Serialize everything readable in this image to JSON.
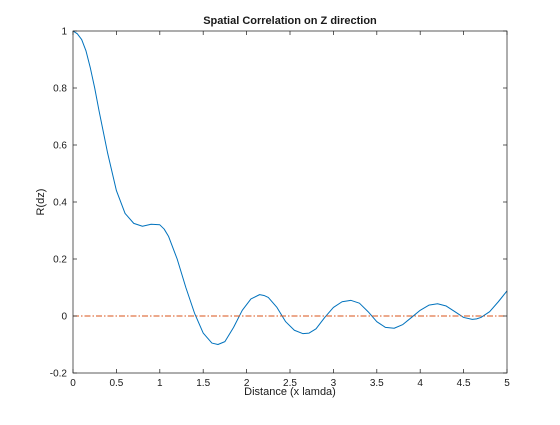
{
  "chart_data": {
    "type": "line",
    "title": "Spatial Correlation on Z direction",
    "xlabel": "Distance (x lamda)",
    "ylabel": "R(dz)",
    "xlim": [
      0,
      5
    ],
    "ylim": [
      -0.2,
      1
    ],
    "grid": false,
    "x_ticks": [
      0,
      0.5,
      1,
      1.5,
      2,
      2.5,
      3,
      3.5,
      4,
      4.5,
      5
    ],
    "x_tick_labels": [
      "0",
      "0.5",
      "1",
      "1.5",
      "2",
      "2.5",
      "3",
      "3.5",
      "4",
      "4.5",
      "5"
    ],
    "y_ticks": [
      -0.2,
      0,
      0.2,
      0.4,
      0.6,
      0.8,
      1
    ],
    "y_tick_labels": [
      "-0.2",
      "0",
      "0.2",
      "0.4",
      "0.6",
      "0.8",
      "1"
    ],
    "series": [
      {
        "style": "solid",
        "color": "#0072bd",
        "x": [
          0,
          0.05,
          0.1,
          0.15,
          0.2,
          0.25,
          0.3,
          0.4,
          0.5,
          0.6,
          0.7,
          0.8,
          0.9,
          1.0,
          1.05,
          1.1,
          1.2,
          1.3,
          1.4,
          1.5,
          1.6,
          1.67,
          1.75,
          1.85,
          1.95,
          2.05,
          2.15,
          2.2,
          2.25,
          2.35,
          2.45,
          2.55,
          2.65,
          2.72,
          2.8,
          2.9,
          3.0,
          3.1,
          3.2,
          3.3,
          3.4,
          3.5,
          3.6,
          3.7,
          3.8,
          3.9,
          4.0,
          4.1,
          4.2,
          4.3,
          4.4,
          4.5,
          4.6,
          4.65,
          4.7,
          4.8,
          4.9,
          5.0
        ],
        "y": [
          1.0,
          0.99,
          0.97,
          0.93,
          0.87,
          0.8,
          0.72,
          0.57,
          0.44,
          0.36,
          0.325,
          0.315,
          0.322,
          0.32,
          0.305,
          0.28,
          0.2,
          0.1,
          0.01,
          -0.06,
          -0.095,
          -0.1,
          -0.09,
          -0.04,
          0.02,
          0.06,
          0.075,
          0.072,
          0.065,
          0.03,
          -0.02,
          -0.05,
          -0.062,
          -0.06,
          -0.045,
          -0.005,
          0.03,
          0.05,
          0.055,
          0.045,
          0.015,
          -0.02,
          -0.04,
          -0.043,
          -0.03,
          -0.005,
          0.02,
          0.038,
          0.043,
          0.035,
          0.015,
          -0.005,
          -0.012,
          -0.01,
          -0.005,
          0.015,
          0.05,
          0.088
        ]
      },
      {
        "style": "dash-dot",
        "color": "#d95319",
        "x": [
          0,
          5
        ],
        "y": [
          0,
          0
        ]
      }
    ]
  }
}
